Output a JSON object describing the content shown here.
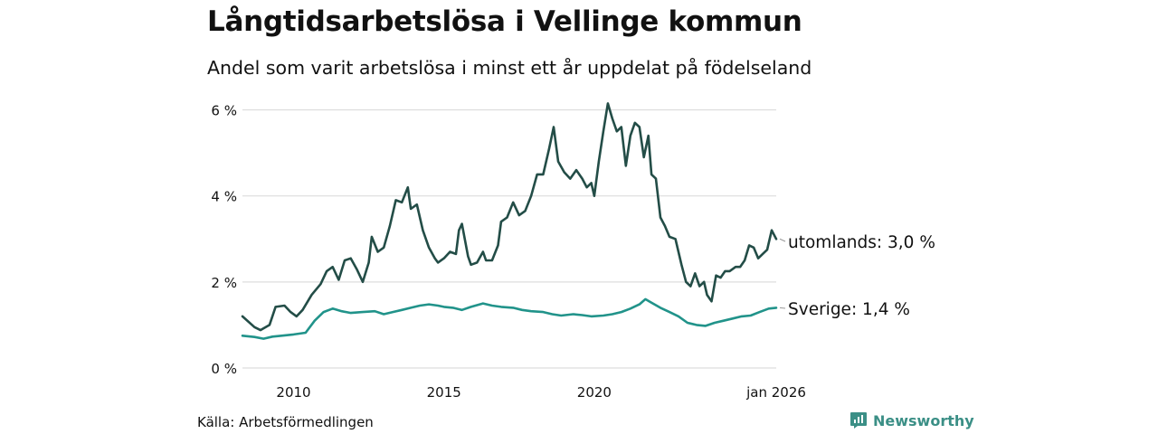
{
  "chart_data": {
    "type": "line",
    "title": "Långtidsarbetslösa i Vellinge kommun",
    "subtitle": "Andel som varit arbetslösa i minst ett år uppdelat på födelseland",
    "x_unit": "year (decimal)",
    "xlim": [
      2008.3,
      2026.05
    ],
    "ylim": [
      0,
      6.2
    ],
    "y_ticks": [
      {
        "value": 0,
        "label": "0 %"
      },
      {
        "value": 2,
        "label": "2 %"
      },
      {
        "value": 4,
        "label": "4 %"
      },
      {
        "value": 6,
        "label": "6 %"
      }
    ],
    "x_ticks": [
      {
        "value": 2010,
        "label": "2010"
      },
      {
        "value": 2015,
        "label": "2015"
      },
      {
        "value": 2020,
        "label": "2020"
      },
      {
        "value": 2026.05,
        "label": "jan 2026"
      }
    ],
    "grid": "horizontal",
    "series": [
      {
        "name": "utomlands",
        "label": "utomlands: 3,0 %",
        "color": "#234d47",
        "points": [
          [
            2008.3,
            1.2
          ],
          [
            2008.7,
            0.95
          ],
          [
            2008.9,
            0.88
          ],
          [
            2009.2,
            1.0
          ],
          [
            2009.4,
            1.42
          ],
          [
            2009.7,
            1.45
          ],
          [
            2009.9,
            1.3
          ],
          [
            2010.1,
            1.2
          ],
          [
            2010.3,
            1.35
          ],
          [
            2010.6,
            1.7
          ],
          [
            2010.9,
            1.95
          ],
          [
            2011.1,
            2.25
          ],
          [
            2011.3,
            2.35
          ],
          [
            2011.5,
            2.05
          ],
          [
            2011.7,
            2.5
          ],
          [
            2011.9,
            2.55
          ],
          [
            2012.1,
            2.3
          ],
          [
            2012.3,
            2.0
          ],
          [
            2012.5,
            2.45
          ],
          [
            2012.6,
            3.05
          ],
          [
            2012.8,
            2.7
          ],
          [
            2013.0,
            2.8
          ],
          [
            2013.2,
            3.3
          ],
          [
            2013.4,
            3.9
          ],
          [
            2013.6,
            3.85
          ],
          [
            2013.8,
            4.2
          ],
          [
            2013.9,
            3.7
          ],
          [
            2014.1,
            3.8
          ],
          [
            2014.3,
            3.2
          ],
          [
            2014.5,
            2.8
          ],
          [
            2014.7,
            2.55
          ],
          [
            2014.8,
            2.45
          ],
          [
            2015.0,
            2.55
          ],
          [
            2015.2,
            2.7
          ],
          [
            2015.4,
            2.65
          ],
          [
            2015.5,
            3.2
          ],
          [
            2015.6,
            3.35
          ],
          [
            2015.8,
            2.6
          ],
          [
            2015.9,
            2.4
          ],
          [
            2016.1,
            2.45
          ],
          [
            2016.3,
            2.7
          ],
          [
            2016.4,
            2.5
          ],
          [
            2016.6,
            2.5
          ],
          [
            2016.8,
            2.85
          ],
          [
            2016.9,
            3.4
          ],
          [
            2017.1,
            3.5
          ],
          [
            2017.3,
            3.85
          ],
          [
            2017.5,
            3.55
          ],
          [
            2017.7,
            3.65
          ],
          [
            2017.9,
            4.0
          ],
          [
            2018.1,
            4.5
          ],
          [
            2018.3,
            4.5
          ],
          [
            2018.5,
            5.1
          ],
          [
            2018.65,
            5.6
          ],
          [
            2018.8,
            4.8
          ],
          [
            2019.0,
            4.55
          ],
          [
            2019.2,
            4.4
          ],
          [
            2019.4,
            4.6
          ],
          [
            2019.6,
            4.4
          ],
          [
            2019.75,
            4.2
          ],
          [
            2019.9,
            4.3
          ],
          [
            2020.0,
            4.0
          ],
          [
            2020.15,
            4.8
          ],
          [
            2020.3,
            5.5
          ],
          [
            2020.45,
            6.15
          ],
          [
            2020.6,
            5.8
          ],
          [
            2020.75,
            5.5
          ],
          [
            2020.9,
            5.6
          ],
          [
            2021.05,
            4.7
          ],
          [
            2021.2,
            5.4
          ],
          [
            2021.35,
            5.7
          ],
          [
            2021.5,
            5.6
          ],
          [
            2021.65,
            4.9
          ],
          [
            2021.8,
            5.4
          ],
          [
            2021.9,
            4.5
          ],
          [
            2022.05,
            4.4
          ],
          [
            2022.2,
            3.5
          ],
          [
            2022.35,
            3.3
          ],
          [
            2022.5,
            3.05
          ],
          [
            2022.7,
            3.0
          ],
          [
            2022.9,
            2.4
          ],
          [
            2023.05,
            2.0
          ],
          [
            2023.2,
            1.9
          ],
          [
            2023.35,
            2.2
          ],
          [
            2023.5,
            1.9
          ],
          [
            2023.65,
            2.0
          ],
          [
            2023.75,
            1.7
          ],
          [
            2023.9,
            1.55
          ],
          [
            2024.05,
            2.15
          ],
          [
            2024.2,
            2.1
          ],
          [
            2024.35,
            2.25
          ],
          [
            2024.5,
            2.25
          ],
          [
            2024.7,
            2.35
          ],
          [
            2024.85,
            2.35
          ],
          [
            2025.0,
            2.5
          ],
          [
            2025.15,
            2.85
          ],
          [
            2025.3,
            2.8
          ],
          [
            2025.45,
            2.55
          ],
          [
            2025.6,
            2.65
          ],
          [
            2025.75,
            2.75
          ],
          [
            2025.9,
            3.2
          ],
          [
            2026.05,
            3.0
          ]
        ]
      },
      {
        "name": "Sverige",
        "label": "Sverige: 1,4 %",
        "color": "#21938a",
        "points": [
          [
            2008.3,
            0.75
          ],
          [
            2008.7,
            0.72
          ],
          [
            2009.0,
            0.68
          ],
          [
            2009.3,
            0.73
          ],
          [
            2009.6,
            0.75
          ],
          [
            2010.0,
            0.78
          ],
          [
            2010.4,
            0.82
          ],
          [
            2010.7,
            1.1
          ],
          [
            2011.0,
            1.3
          ],
          [
            2011.3,
            1.38
          ],
          [
            2011.6,
            1.32
          ],
          [
            2011.9,
            1.28
          ],
          [
            2012.3,
            1.3
          ],
          [
            2012.7,
            1.32
          ],
          [
            2013.0,
            1.25
          ],
          [
            2013.3,
            1.3
          ],
          [
            2013.6,
            1.35
          ],
          [
            2013.9,
            1.4
          ],
          [
            2014.2,
            1.45
          ],
          [
            2014.5,
            1.48
          ],
          [
            2014.8,
            1.45
          ],
          [
            2015.0,
            1.42
          ],
          [
            2015.3,
            1.4
          ],
          [
            2015.6,
            1.35
          ],
          [
            2015.9,
            1.42
          ],
          [
            2016.3,
            1.5
          ],
          [
            2016.6,
            1.45
          ],
          [
            2016.9,
            1.42
          ],
          [
            2017.3,
            1.4
          ],
          [
            2017.6,
            1.35
          ],
          [
            2017.9,
            1.32
          ],
          [
            2018.3,
            1.3
          ],
          [
            2018.6,
            1.25
          ],
          [
            2018.9,
            1.22
          ],
          [
            2019.3,
            1.25
          ],
          [
            2019.6,
            1.23
          ],
          [
            2019.9,
            1.2
          ],
          [
            2020.3,
            1.22
          ],
          [
            2020.6,
            1.25
          ],
          [
            2020.9,
            1.3
          ],
          [
            2021.2,
            1.38
          ],
          [
            2021.5,
            1.48
          ],
          [
            2021.7,
            1.6
          ],
          [
            2021.9,
            1.52
          ],
          [
            2022.2,
            1.4
          ],
          [
            2022.5,
            1.3
          ],
          [
            2022.8,
            1.2
          ],
          [
            2023.1,
            1.05
          ],
          [
            2023.4,
            1.0
          ],
          [
            2023.7,
            0.98
          ],
          [
            2024.0,
            1.05
          ],
          [
            2024.3,
            1.1
          ],
          [
            2024.6,
            1.15
          ],
          [
            2024.9,
            1.2
          ],
          [
            2025.2,
            1.22
          ],
          [
            2025.5,
            1.3
          ],
          [
            2025.8,
            1.38
          ],
          [
            2026.05,
            1.4
          ]
        ]
      }
    ]
  },
  "source": "Källa: Arbetsförmedlingen",
  "brand": "Newsworthy",
  "colors": {
    "grid": "#dddddd",
    "text": "#111111",
    "brand": "#3b8f86"
  }
}
